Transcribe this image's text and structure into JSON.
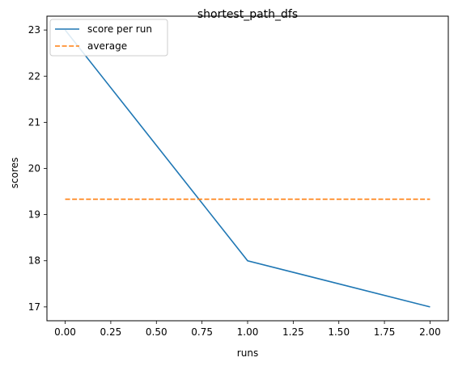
{
  "chart_data": {
    "type": "line",
    "title": "shortest_path_dfs",
    "xlabel": "runs",
    "ylabel": "scores",
    "xlim": [
      -0.1,
      2.1
    ],
    "ylim": [
      16.7,
      23.3
    ],
    "x_ticks": [
      0.0,
      0.25,
      0.5,
      0.75,
      1.0,
      1.25,
      1.5,
      1.75,
      2.0
    ],
    "x_tick_labels": [
      "0.00",
      "0.25",
      "0.50",
      "0.75",
      "1.00",
      "1.25",
      "1.50",
      "1.75",
      "2.00"
    ],
    "y_ticks": [
      17,
      18,
      19,
      20,
      21,
      22,
      23
    ],
    "y_tick_labels": [
      "17",
      "18",
      "19",
      "20",
      "21",
      "22",
      "23"
    ],
    "grid": false,
    "legend_position": "top-left",
    "series": [
      {
        "name": "score per run",
        "style": "solid",
        "color": "#1f77b4",
        "x": [
          0,
          1,
          2
        ],
        "y": [
          23,
          18,
          17
        ]
      },
      {
        "name": "average",
        "style": "dashed",
        "color": "#ff7f0e",
        "x": [
          0,
          2
        ],
        "y": [
          19.333,
          19.333
        ]
      }
    ]
  }
}
